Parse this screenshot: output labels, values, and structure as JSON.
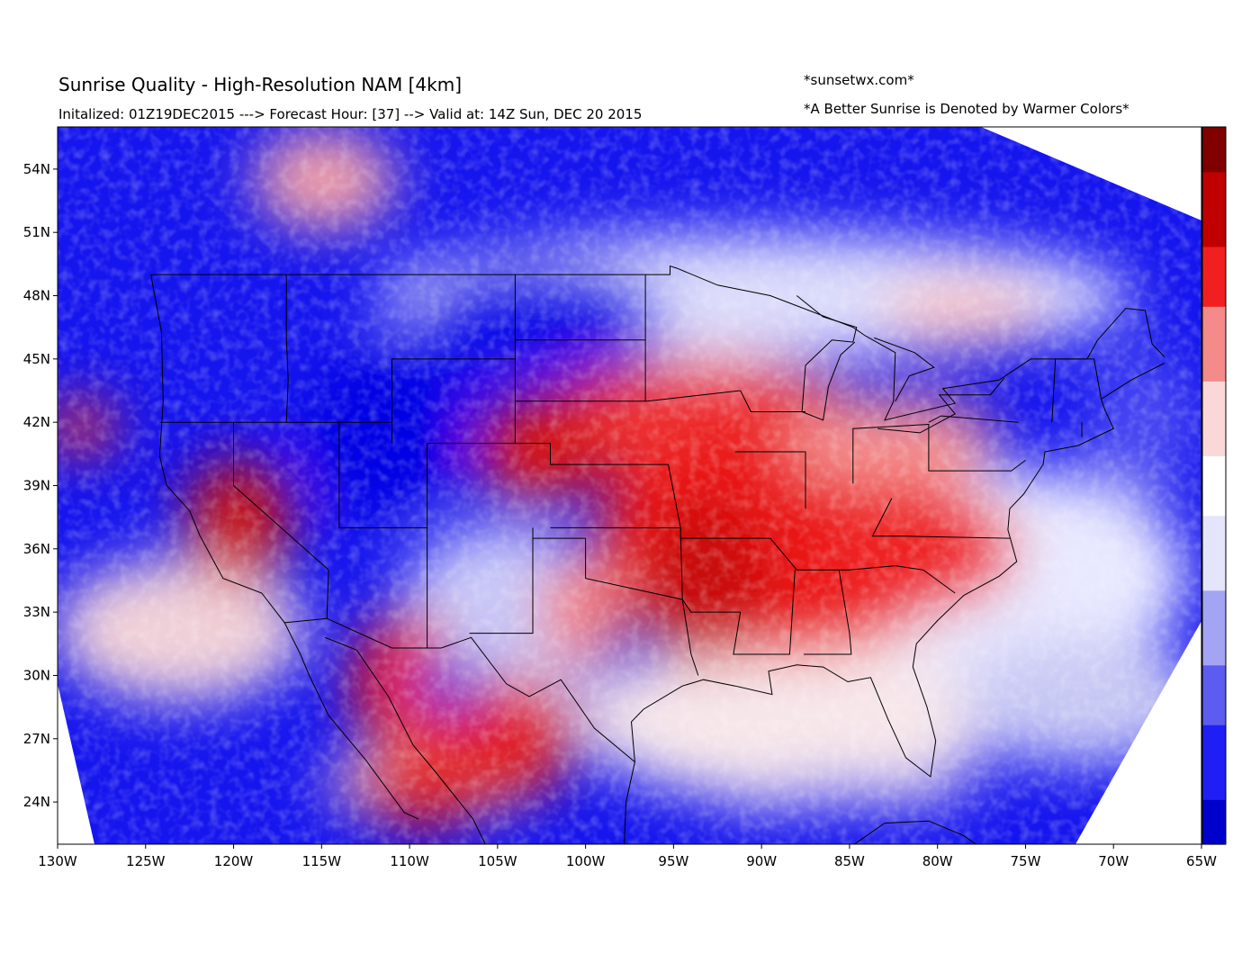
{
  "header": {
    "title": "Sunrise Quality - High-Resolution NAM [4km]",
    "subtitle": "Initalized: 01Z19DEC2015 ---> Forecast Hour: [37] --> Valid at: 14Z Sun, DEC 20 2015",
    "credit": "*sunsetwx.com*",
    "note": "*A Better Sunrise is Denoted by Warmer Colors*"
  },
  "map": {
    "projection": "lat-lon",
    "lon_range": [
      -130,
      -65
    ],
    "lat_range": [
      22,
      56
    ],
    "lon_ticks": [
      "130W",
      "125W",
      "120W",
      "115W",
      "110W",
      "105W",
      "100W",
      "95W",
      "90W",
      "85W",
      "80W",
      "75W",
      "70W",
      "65W"
    ],
    "lat_ticks": [
      "54N",
      "51N",
      "48N",
      "45N",
      "42N",
      "39N",
      "36N",
      "33N",
      "30N",
      "27N",
      "24N"
    ],
    "colors": {
      "low": "#0000dd",
      "mid": "#ffffff",
      "high": "#8b0000",
      "coastline": "#000000"
    },
    "colorbar": {
      "orientation": "vertical",
      "placement": "right",
      "stops": [
        "#0000cc",
        "#1f1ff5",
        "#5c5cf0",
        "#a4a4f4",
        "#e4e4fb",
        "#ffffff",
        "#fbd8d8",
        "#f48a8a",
        "#f02020",
        "#c00000",
        "#800000"
      ]
    }
  }
}
